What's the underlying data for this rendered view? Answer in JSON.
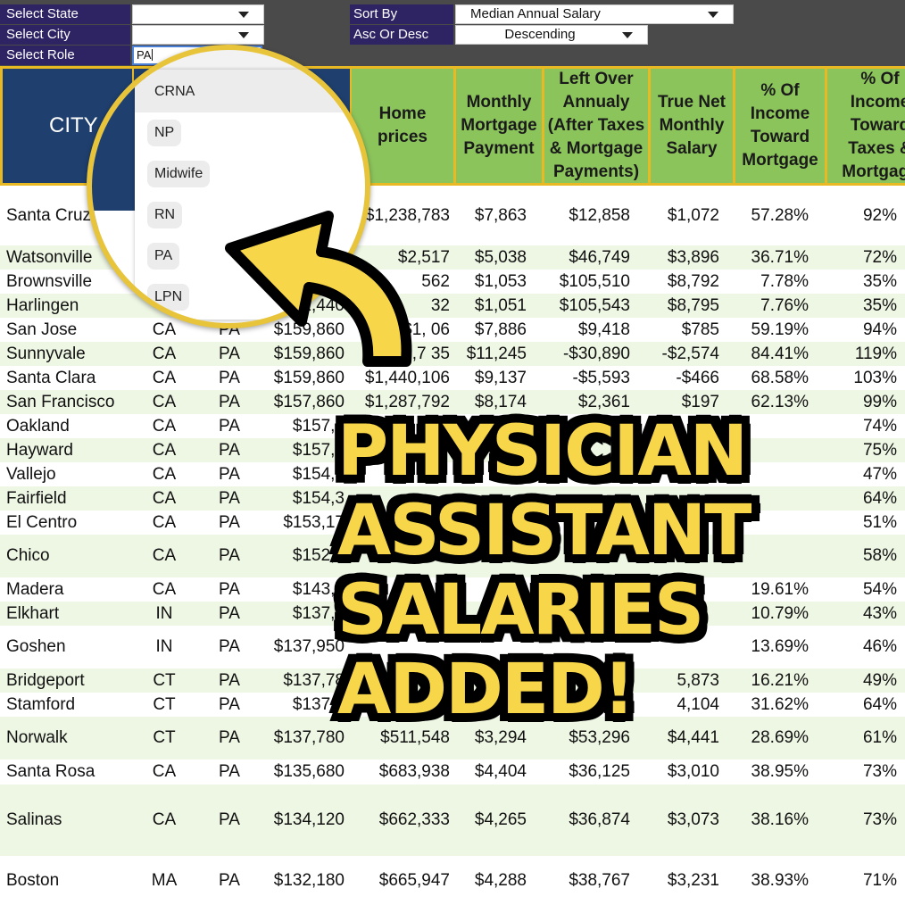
{
  "filters": {
    "state_label": "Select State",
    "state_value": "",
    "city_label": "Select City",
    "city_value": "",
    "role_label": "Select Role",
    "role_value": "PA",
    "sort_label": "Sort By",
    "sort_value": "Median Annual Salary",
    "order_label": "Asc Or Desc",
    "order_value": "Descending"
  },
  "role_options": [
    "CRNA",
    "NP",
    "Midwife",
    "RN",
    "PA",
    "LPN"
  ],
  "columns": {
    "city": "CITY",
    "home": "Home prices",
    "mortgage": "Monthly Mortgage Payment",
    "left": "Left Over Annualy (After Taxes & Mortgage Payments)",
    "net": "True Net Monthly Salary",
    "income": "% Of Income Toward Mortgage",
    "taxes": "% Of Income Toward Taxes & Mortgage"
  },
  "rows": [
    {
      "city": "Santa Cruz",
      "state": "",
      "role": "",
      "salary": "",
      "home": "$1,238,783",
      "mortgage": "$7,863",
      "left": "$12,858",
      "net": "$1,072",
      "income": "57.28%",
      "taxes": "92%"
    },
    {
      "city": "Watsonville",
      "state": "",
      "role": "",
      "salary": "",
      "home": "$2,517",
      "mortgage": "$5,038",
      "left": "$46,749",
      "net": "$3,896",
      "income": "36.71%",
      "taxes": "72%"
    },
    {
      "city": "Brownsville",
      "state": "",
      "role": "",
      "salary": "",
      "home": "562",
      "mortgage": "$1,053",
      "left": "$105,510",
      "net": "$8,792",
      "income": "7.78%",
      "taxes": "35%"
    },
    {
      "city": "Harlingen",
      "state": "",
      "role": "",
      "salary": "2,440",
      "home": "32",
      "mortgage": "$1,051",
      "left": "$105,543",
      "net": "$8,795",
      "income": "7.76%",
      "taxes": "35%"
    },
    {
      "city": "San Jose",
      "state": "CA",
      "role": "PA",
      "salary": "$159,860",
      "home": "$1,     06",
      "mortgage": "$7,886",
      "left": "$9,418",
      "net": "$785",
      "income": "59.19%",
      "taxes": "94%"
    },
    {
      "city": "Sunnyvale",
      "state": "CA",
      "role": "PA",
      "salary": "$159,860",
      "home": "$1,7    35",
      "mortgage": "$11,245",
      "left": "-$30,890",
      "net": "-$2,574",
      "income": "84.41%",
      "taxes": "119%"
    },
    {
      "city": "Santa Clara",
      "state": "CA",
      "role": "PA",
      "salary": "$159,860",
      "home": "$1,440,106",
      "mortgage": "$9,137",
      "left": "-$5,593",
      "net": "-$466",
      "income": "68.58%",
      "taxes": "103%"
    },
    {
      "city": "San Francisco",
      "state": "CA",
      "role": "PA",
      "salary": "$157,860",
      "home": "$1,287,792",
      "mortgage": "$8,174",
      "left": "$2,361",
      "net": "$197",
      "income": "62.13%",
      "taxes": "99%"
    },
    {
      "city": "Oakland",
      "state": "CA",
      "role": "PA",
      "salary": "$157,8",
      "home": "",
      "mortgage": "",
      "left": "",
      "net": "",
      "income": "",
      "taxes": "74%"
    },
    {
      "city": "Hayward",
      "state": "CA",
      "role": "PA",
      "salary": "$157,8",
      "home": "",
      "mortgage": "",
      "left": "",
      "net": "",
      "income": "",
      "taxes": "75%"
    },
    {
      "city": "Vallejo",
      "state": "CA",
      "role": "PA",
      "salary": "$154,3",
      "home": "",
      "mortgage": "",
      "left": "",
      "net": "",
      "income": "",
      "taxes": "47%"
    },
    {
      "city": "Fairfield",
      "state": "CA",
      "role": "PA",
      "salary": "$154,3",
      "home": "",
      "mortgage": "",
      "left": "",
      "net": "",
      "income": "",
      "taxes": "64%"
    },
    {
      "city": "El Centro",
      "state": "CA",
      "role": "PA",
      "salary": "$153,17",
      "home": "",
      "mortgage": "",
      "left": "",
      "net": "",
      "income": "",
      "taxes": "51%"
    },
    {
      "city": "Chico",
      "state": "CA",
      "role": "PA",
      "salary": "$152,4",
      "home": "",
      "mortgage": "",
      "left": "",
      "net": "",
      "income": "",
      "taxes": "58%"
    },
    {
      "city": "Madera",
      "state": "CA",
      "role": "PA",
      "salary": "$143,8",
      "home": "",
      "mortgage": "",
      "left": "",
      "net": "",
      "income": "19.61%",
      "taxes": "54%"
    },
    {
      "city": "Elkhart",
      "state": "IN",
      "role": "PA",
      "salary": "$137,9",
      "home": "",
      "mortgage": "",
      "left": "",
      "net": "",
      "income": "10.79%",
      "taxes": "43%"
    },
    {
      "city": "Goshen",
      "state": "IN",
      "role": "PA",
      "salary": "$137,950",
      "home": "",
      "mortgage": "",
      "left": "",
      "net": "",
      "income": "13.69%",
      "taxes": "46%"
    },
    {
      "city": "Bridgeport",
      "state": "CT",
      "role": "PA",
      "salary": "$137,78",
      "home": "",
      "mortgage": "",
      "left": "",
      "net": "5,873",
      "income": "16.21%",
      "taxes": "49%"
    },
    {
      "city": "Stamford",
      "state": "CT",
      "role": "PA",
      "salary": "$137,7",
      "home": "",
      "mortgage": "",
      "left": "",
      "net": "4,104",
      "income": "31.62%",
      "taxes": "64%"
    },
    {
      "city": "Norwalk",
      "state": "CT",
      "role": "PA",
      "salary": "$137,780",
      "home": "$511,548",
      "mortgage": "$3,294",
      "left": "$53,296",
      "net": "$4,441",
      "income": "28.69%",
      "taxes": "61%"
    },
    {
      "city": "Santa Rosa",
      "state": "CA",
      "role": "PA",
      "salary": "$135,680",
      "home": "$683,938",
      "mortgage": "$4,404",
      "left": "$36,125",
      "net": "$3,010",
      "income": "38.95%",
      "taxes": "73%"
    },
    {
      "city": "Salinas",
      "state": "CA",
      "role": "PA",
      "salary": "$134,120",
      "home": "$662,333",
      "mortgage": "$4,265",
      "left": "$36,874",
      "net": "$3,073",
      "income": "38.16%",
      "taxes": "73%"
    },
    {
      "city": "Boston",
      "state": "MA",
      "role": "PA",
      "salary": "$132,180",
      "home": "$665,947",
      "mortgage": "$4,288",
      "left": "$38,767",
      "net": "$3,231",
      "income": "38.93%",
      "taxes": "71%"
    }
  ],
  "headline": [
    "PHYSICIAN",
    "ASSISTANT",
    "SALARIES",
    "ADDED!"
  ],
  "colors": {
    "header_navy": "#1f3f6e",
    "header_green": "#8cc45c",
    "border_gold": "#e8b923",
    "label_purple": "#2e2464",
    "headline_yellow": "#f7d64a"
  },
  "icons": {
    "dropdown": "chevron-down-icon",
    "arrow": "curved-arrow-icon"
  }
}
